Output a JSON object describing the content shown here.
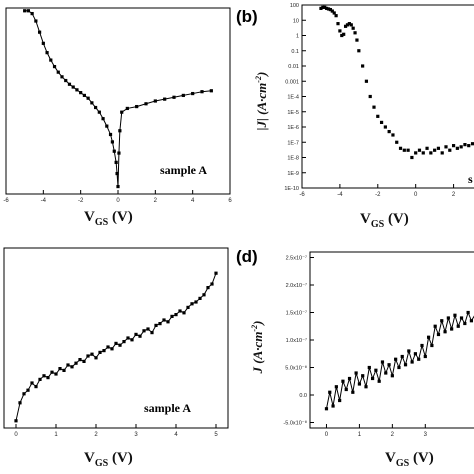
{
  "chart_data": [
    {
      "panel": "a",
      "type": "line",
      "panel_label": "",
      "xlabel_main": "V",
      "xlabel_sub": "GS",
      "xlabel_unit": " (V)",
      "ylabel_main": "",
      "ylabel_sub": "",
      "ylabel_unit": "",
      "annotation": "sample A",
      "xlim": [
        -6,
        6
      ],
      "ylim": [
        0,
        1
      ],
      "x_ticks": [
        "-6",
        "-4",
        "-2",
        "0",
        "2",
        "4",
        "6"
      ],
      "y_ticks": [],
      "x": [
        -5.0,
        -4.8,
        -4.6,
        -4.4,
        -4.2,
        -4.0,
        -3.8,
        -3.6,
        -3.4,
        -3.2,
        -3.0,
        -2.8,
        -2.6,
        -2.4,
        -2.2,
        -2.0,
        -1.8,
        -1.6,
        -1.4,
        -1.2,
        -1.0,
        -0.8,
        -0.6,
        -0.4,
        -0.3,
        -0.2,
        -0.1,
        -0.05,
        0.0,
        0.05,
        0.1,
        0.2,
        0.5,
        1.0,
        1.5,
        2.0,
        2.5,
        3.0,
        3.5,
        4.0,
        4.5,
        5.0
      ],
      "y": [
        0.985,
        0.985,
        0.97,
        0.93,
        0.87,
        0.81,
        0.76,
        0.72,
        0.685,
        0.655,
        0.63,
        0.61,
        0.59,
        0.575,
        0.56,
        0.545,
        0.53,
        0.515,
        0.49,
        0.465,
        0.44,
        0.405,
        0.365,
        0.32,
        0.28,
        0.23,
        0.17,
        0.11,
        0.04,
        0.22,
        0.34,
        0.44,
        0.46,
        0.47,
        0.485,
        0.5,
        0.51,
        0.52,
        0.53,
        0.54,
        0.55,
        0.555
      ]
    },
    {
      "panel": "b",
      "type": "scatter",
      "panel_label": "(b)",
      "xlabel_main": "V",
      "xlabel_sub": "GS",
      "xlabel_unit": " (V)",
      "ylabel_main": "|J| (A·cm",
      "ylabel_sup": "-2",
      "ylabel_end": ")",
      "annotation": "s",
      "yscale": "log",
      "xlim": [
        -6,
        3.5
      ],
      "ylim_exp": [
        -10,
        2
      ],
      "x_ticks": [
        "-6",
        "-4",
        "-2",
        "0",
        "2"
      ],
      "y_ticks": [
        "100",
        "10",
        "1",
        "0.1",
        "0.01",
        "0.001",
        "1E-4",
        "1E-5",
        "1E-6",
        "1E-7",
        "1E-8",
        "1E-9",
        "1E-10"
      ],
      "x": [
        -5.0,
        -4.9,
        -4.8,
        -4.7,
        -4.6,
        -4.5,
        -4.4,
        -4.3,
        -4.2,
        -4.1,
        -4.0,
        -3.9,
        -3.8,
        -3.7,
        -3.6,
        -3.5,
        -3.4,
        -3.3,
        -3.2,
        -3.1,
        -3.0,
        -2.8,
        -2.6,
        -2.4,
        -2.2,
        -2.0,
        -1.8,
        -1.6,
        -1.4,
        -1.2,
        -1.0,
        -0.8,
        -0.6,
        -0.4,
        -0.2,
        0.0,
        0.2,
        0.4,
        0.6,
        0.8,
        1.0,
        1.2,
        1.4,
        1.6,
        1.8,
        2.0,
        2.2,
        2.4,
        2.6,
        2.8,
        3.0,
        3.2
      ],
      "y": [
        60,
        70,
        70,
        60,
        55,
        50,
        40,
        30,
        20,
        6,
        2,
        1,
        1.2,
        4,
        5,
        6,
        5,
        3,
        1.5,
        0.5,
        0.1,
        0.01,
        0.001,
        0.0001,
        2e-05,
        5e-06,
        2e-06,
        1e-06,
        5e-07,
        3e-07,
        1e-07,
        4e-08,
        3e-08,
        3e-08,
        1e-08,
        2e-08,
        3e-08,
        2e-08,
        4e-08,
        2e-08,
        3e-08,
        4e-08,
        2e-08,
        5e-08,
        3e-08,
        6e-08,
        4e-08,
        5e-08,
        7e-08,
        6e-08,
        8e-08,
        7e-08
      ]
    },
    {
      "panel": "c",
      "type": "line",
      "panel_label": "",
      "xlabel_main": "V",
      "xlabel_sub": "GS",
      "xlabel_unit": " (V)",
      "annotation": "sample A",
      "xlim": [
        -0.3,
        5.3
      ],
      "ylim": [
        0,
        1
      ],
      "x_ticks": [
        "0",
        "1",
        "2",
        "3",
        "4",
        "5"
      ],
      "y_ticks": [],
      "x": [
        0.0,
        0.1,
        0.2,
        0.3,
        0.4,
        0.5,
        0.6,
        0.7,
        0.8,
        0.9,
        1.0,
        1.1,
        1.2,
        1.3,
        1.4,
        1.5,
        1.6,
        1.7,
        1.8,
        1.9,
        2.0,
        2.1,
        2.2,
        2.3,
        2.4,
        2.5,
        2.6,
        2.7,
        2.8,
        2.9,
        3.0,
        3.1,
        3.2,
        3.3,
        3.4,
        3.5,
        3.6,
        3.7,
        3.8,
        3.9,
        4.0,
        4.1,
        4.2,
        4.3,
        4.4,
        4.5,
        4.6,
        4.7,
        4.8,
        4.9,
        5.0
      ],
      "y": [
        0.04,
        0.14,
        0.19,
        0.21,
        0.25,
        0.23,
        0.27,
        0.29,
        0.28,
        0.31,
        0.3,
        0.33,
        0.32,
        0.35,
        0.34,
        0.36,
        0.38,
        0.37,
        0.4,
        0.41,
        0.39,
        0.42,
        0.43,
        0.45,
        0.44,
        0.47,
        0.46,
        0.48,
        0.5,
        0.49,
        0.52,
        0.51,
        0.54,
        0.55,
        0.53,
        0.57,
        0.58,
        0.6,
        0.59,
        0.62,
        0.63,
        0.65,
        0.64,
        0.67,
        0.69,
        0.7,
        0.72,
        0.74,
        0.78,
        0.8,
        0.86
      ]
    },
    {
      "panel": "d",
      "type": "line",
      "panel_label": "(d)",
      "xlabel_main": "V",
      "xlabel_sub": "GS",
      "xlabel_unit": " (V)",
      "ylabel_main": "J (A·cm",
      "ylabel_sup": "-2",
      "ylabel_end": ")",
      "xlim": [
        -0.5,
        4.6
      ],
      "ylim": [
        -6e-08,
        2.6e-07
      ],
      "x_ticks": [
        "0",
        "1",
        "2",
        "3"
      ],
      "y_ticks": [
        {
          "value": 2.5e-07,
          "label": "2.5x10⁻⁷"
        },
        {
          "value": 2e-07,
          "label": "2.0x10⁻⁷"
        },
        {
          "value": 1.5e-07,
          "label": "1.5x10⁻⁷"
        },
        {
          "value": 1e-07,
          "label": "1.0x10⁻⁷"
        },
        {
          "value": 5e-08,
          "label": "5.0x10⁻⁸"
        },
        {
          "value": 0.0,
          "label": "0.0"
        },
        {
          "value": -5e-08,
          "label": "-5.0x10⁻⁸"
        }
      ],
      "x": [
        0.0,
        0.1,
        0.2,
        0.3,
        0.4,
        0.5,
        0.6,
        0.7,
        0.8,
        0.9,
        1.0,
        1.1,
        1.2,
        1.3,
        1.4,
        1.5,
        1.6,
        1.7,
        1.8,
        1.9,
        2.0,
        2.1,
        2.2,
        2.3,
        2.4,
        2.5,
        2.6,
        2.7,
        2.8,
        2.9,
        3.0,
        3.1,
        3.2,
        3.3,
        3.4,
        3.5,
        3.6,
        3.7,
        3.8,
        3.9,
        4.0,
        4.1,
        4.2,
        4.3,
        4.4,
        4.5
      ],
      "y": [
        -2.5e-08,
        5e-09,
        -2e-08,
        1.5e-08,
        -1e-08,
        2.5e-08,
        1e-08,
        3e-08,
        5e-09,
        4e-08,
        2e-08,
        3.5e-08,
        1.5e-08,
        5e-08,
        3e-08,
        4.5e-08,
        2.5e-08,
        6e-08,
        4e-08,
        5.5e-08,
        3.5e-08,
        6.5e-08,
        5e-08,
        7e-08,
        5.5e-08,
        8e-08,
        6e-08,
        7.5e-08,
        6.5e-08,
        9e-08,
        7e-08,
        1.05e-07,
        9e-08,
        1.25e-07,
        1.1e-07,
        1.35e-07,
        1.15e-07,
        1.4e-07,
        1.2e-07,
        1.45e-07,
        1.25e-07,
        1.4e-07,
        1.3e-07,
        1.5e-07,
        1.35e-07,
        1.45e-07
      ]
    }
  ]
}
